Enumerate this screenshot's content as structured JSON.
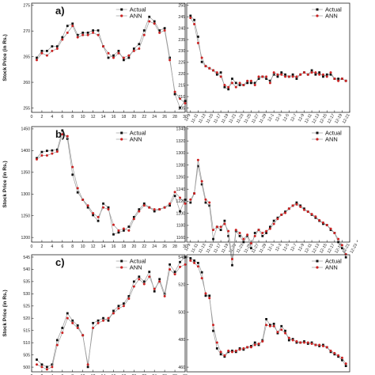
{
  "figure": {
    "panel_labels": [
      "a)",
      "b)",
      "c)"
    ],
    "ylabel": "Stock Price (in Rs.)",
    "series_names": [
      "Actual",
      "ANN"
    ],
    "colors": {
      "actual": "#111111",
      "ann": "#cc2222",
      "line": "#9a9a9a"
    }
  },
  "chart_data": [
    {
      "type": "line",
      "panel": "a)",
      "position": "left",
      "x": [
        1,
        2,
        3,
        4,
        5,
        6,
        7,
        8,
        9,
        10,
        11,
        12,
        13,
        14,
        15,
        16,
        17,
        18,
        19,
        20,
        21,
        22,
        23,
        24,
        25,
        26,
        27,
        28,
        29,
        30
      ],
      "x_ticks": [
        "0",
        "2",
        "4",
        "6",
        "8",
        "10",
        "12",
        "14",
        "16",
        "18",
        "20",
        "22",
        "24",
        "26",
        "28",
        "30"
      ],
      "xlim": [
        0,
        30
      ],
      "ylim": [
        254,
        278
      ],
      "y_ticks": [
        "255",
        "260",
        "265",
        "270",
        "275"
      ],
      "series": [
        {
          "name": "Actual",
          "values": [
            266.0,
            267.5,
            267.5,
            268.5,
            268.5,
            270.5,
            273.0,
            273.5,
            271.0,
            271.5,
            271.5,
            272.0,
            272.0,
            268.5,
            266.0,
            266.5,
            267.5,
            265.5,
            266.0,
            268.0,
            269.0,
            272.0,
            275.0,
            274.0,
            272.0,
            272.5,
            266.0,
            258.0,
            255.0,
            256.5
          ]
        },
        {
          "name": "ANN",
          "values": [
            265.5,
            267.0,
            266.5,
            267.5,
            268.0,
            270.0,
            271.5,
            273.0,
            270.5,
            271.0,
            271.0,
            271.5,
            271.0,
            268.5,
            267.0,
            266.0,
            267.0,
            266.0,
            266.5,
            267.5,
            268.0,
            271.0,
            274.0,
            273.5,
            271.5,
            272.0,
            265.5,
            258.5,
            257.0,
            256.0
          ]
        }
      ]
    },
    {
      "type": "line",
      "position": "right",
      "x": [
        1,
        2,
        3,
        4,
        5,
        6,
        7,
        8,
        9,
        10,
        11,
        12,
        13,
        14,
        15,
        16,
        17,
        18,
        19,
        20,
        21,
        22,
        23,
        24,
        25,
        26,
        27,
        28,
        29,
        30,
        31,
        32,
        33,
        34,
        35,
        36,
        37,
        38,
        39,
        40,
        41,
        42
      ],
      "x_ticks": [
        "11-9",
        "11-11",
        "11-13",
        "11-15",
        "11-17",
        "11-19",
        "11-21",
        "11-23",
        "11-25",
        "11-27",
        "11-29",
        "12-1",
        "12-3",
        "12-5",
        "12-7",
        "12-9",
        "12-11",
        "12-13",
        "12-15",
        "12-17",
        "12-19",
        "12-21"
      ],
      "xlim": [
        0,
        43
      ],
      "ylim": [
        200,
        252
      ],
      "y_ticks": [
        "205",
        "210",
        "215",
        "220",
        "225",
        "230",
        "235",
        "240",
        "245",
        "250"
      ],
      "series": [
        {
          "name": "Actual",
          "values": [
            246,
            244,
            236,
            224,
            222,
            221,
            220,
            218,
            219,
            212,
            211,
            216,
            214,
            213,
            213,
            214,
            214,
            214,
            216,
            217,
            216,
            215,
            218,
            217,
            219,
            218,
            217,
            218,
            216,
            218,
            219,
            218,
            220,
            218,
            219,
            217,
            218,
            218,
            216,
            216,
            216,
            215
          ]
        },
        {
          "name": "ANN",
          "values": [
            245,
            242,
            233,
            226,
            222,
            221,
            220,
            219,
            217,
            213,
            212,
            214,
            212,
            214,
            213,
            215,
            215,
            213,
            217,
            217,
            217,
            214,
            219,
            218,
            218,
            217,
            217,
            217,
            217,
            218,
            219,
            218,
            219,
            219,
            218,
            218,
            217,
            219,
            216,
            215,
            216,
            215
          ]
        }
      ]
    },
    {
      "type": "line",
      "panel": "b)",
      "position": "left",
      "x": [
        1,
        2,
        3,
        4,
        5,
        6,
        7,
        8,
        9,
        10,
        11,
        12,
        13,
        14,
        15,
        16,
        17,
        18,
        19,
        20,
        21,
        22,
        23,
        24,
        25,
        26,
        27,
        28,
        29,
        30
      ],
      "x_ticks": [
        "0",
        "2",
        "4",
        "6",
        "8",
        "10",
        "12",
        "14",
        "16",
        "18",
        "20",
        "22",
        "24",
        "26",
        "28",
        "30"
      ],
      "xlim": [
        0,
        30
      ],
      "ylim": [
        1150,
        1450
      ],
      "y_ticks": [
        "1200",
        "1250",
        "1300",
        "1350",
        "1400",
        "1450"
      ],
      "series": [
        {
          "name": "Actual",
          "values": [
            1368,
            1384,
            1387,
            1388,
            1390,
            1440,
            1418,
            1325,
            1279,
            1260,
            1240,
            1220,
            1205,
            1250,
            1240,
            1170,
            1175,
            1180,
            1190,
            1215,
            1235,
            1250,
            1240,
            1230,
            1235,
            1240,
            1245,
            1270,
            1230,
            1260
          ]
        },
        {
          "name": "ANN",
          "values": [
            1365,
            1375,
            1375,
            1380,
            1385,
            1430,
            1425,
            1345,
            1290,
            1260,
            1245,
            1225,
            1215,
            1240,
            1235,
            1195,
            1180,
            1185,
            1180,
            1210,
            1230,
            1245,
            1240,
            1235,
            1235,
            1240,
            1250,
            1280,
            1265,
            1250
          ]
        }
      ]
    },
    {
      "type": "line",
      "position": "right",
      "x": [
        1,
        2,
        3,
        4,
        5,
        6,
        7,
        8,
        9,
        10,
        11,
        12,
        13,
        14,
        15,
        16,
        17,
        18,
        19,
        20,
        21,
        22,
        23,
        24,
        25,
        26,
        27,
        28,
        29,
        30,
        31,
        32,
        33,
        34,
        35,
        36,
        37,
        38,
        39,
        40,
        41,
        42
      ],
      "x_ticks": [
        "11-9",
        "11-11",
        "11-13",
        "11-15",
        "11-17",
        "11-19",
        "11-21",
        "11-23",
        "11-25",
        "11-27",
        "11-29",
        "12-1",
        "12-3",
        "12-5",
        "12-7",
        "12-9",
        "12-11",
        "12-13",
        "12-15",
        "12-17",
        "12-19",
        "12-21",
        "12-23"
      ],
      "xlim": [
        0,
        43
      ],
      "ylim": [
        1150,
        1340
      ],
      "y_ticks": [
        "1160",
        "1180",
        "1200",
        "1220",
        "1240",
        "1260",
        "1280",
        "1300",
        "1320",
        "1340"
      ],
      "series": [
        {
          "name": "Actual",
          "values": [
            1215,
            1230,
            1275,
            1245,
            1215,
            1210,
            1155,
            1175,
            1170,
            1185,
            1160,
            1112,
            1168,
            1160,
            1150,
            1160,
            1140,
            1165,
            1170,
            1160,
            1165,
            1175,
            1185,
            1190,
            1195,
            1200,
            1205,
            1210,
            1215,
            1210,
            1205,
            1200,
            1195,
            1190,
            1185,
            1180,
            1178,
            1170,
            1165,
            1150,
            1140,
            1125
          ]
        },
        {
          "name": "ANN",
          "values": [
            1220,
            1230,
            1285,
            1250,
            1220,
            1215,
            1170,
            1175,
            1175,
            1180,
            1168,
            1122,
            1170,
            1165,
            1155,
            1162,
            1148,
            1160,
            1170,
            1165,
            1168,
            1172,
            1180,
            1188,
            1195,
            1198,
            1205,
            1210,
            1212,
            1208,
            1203,
            1200,
            1196,
            1192,
            1186,
            1182,
            1178,
            1172,
            1165,
            1155,
            1145,
            1130
          ]
        }
      ]
    },
    {
      "type": "line",
      "panel": "c)",
      "position": "left",
      "x": [
        1,
        2,
        3,
        4,
        5,
        6,
        7,
        8,
        9,
        10,
        11,
        12,
        13,
        14,
        15,
        16,
        17,
        18,
        19,
        20,
        21,
        22,
        23,
        24,
        25,
        26,
        27,
        28,
        29,
        30
      ],
      "x_ticks": [
        "0",
        "2",
        "4",
        "6",
        "8",
        "10",
        "12",
        "14",
        "16",
        "18",
        "20",
        "22",
        "24",
        "26",
        "28",
        "30"
      ],
      "xlim": [
        0,
        30
      ],
      "ylim": [
        497,
        545
      ],
      "y_ticks": [
        "500",
        "505",
        "510",
        "515",
        "520",
        "525",
        "530",
        "535",
        "540",
        "545"
      ],
      "series": [
        {
          "name": "Actual",
          "values": [
            502,
            500,
            499,
            500,
            510,
            515,
            521,
            518,
            516,
            512,
            499,
            517,
            518,
            519,
            518,
            522,
            524,
            525,
            528,
            534,
            536,
            534,
            538,
            530,
            535,
            529,
            541,
            538,
            542,
            544
          ]
        },
        {
          "name": "ANN",
          "values": [
            500,
            499,
            498,
            499,
            508,
            513,
            519,
            517,
            515,
            512,
            500,
            515,
            517,
            518,
            519,
            521,
            523,
            524,
            527,
            532,
            535,
            533,
            536,
            531,
            534,
            528,
            539,
            537,
            540,
            541
          ]
        }
      ]
    },
    {
      "type": "line",
      "position": "right",
      "x": [
        1,
        2,
        3,
        4,
        5,
        6,
        7,
        8,
        9,
        10,
        11,
        12,
        13,
        14,
        15,
        16,
        17,
        18,
        19,
        20,
        21,
        22,
        23,
        24,
        25,
        26,
        27,
        28,
        29,
        30,
        31,
        32,
        33,
        34,
        35,
        36,
        37,
        38,
        39,
        40,
        41,
        42
      ],
      "x_ticks": [],
      "xlim": [
        0,
        43
      ],
      "ylim": [
        445,
        545
      ],
      "y_ticks": [
        "460",
        "480",
        "500",
        "520",
        "540"
      ],
      "series": [
        {
          "name": "Actual",
          "values": [
            542,
            540,
            538,
            530,
            510,
            510,
            480,
            465,
            460,
            458,
            462,
            463,
            462,
            465,
            464,
            466,
            467,
            470,
            468,
            472,
            490,
            485,
            486,
            478,
            484,
            480,
            472,
            473,
            470,
            470,
            471,
            469,
            470,
            468,
            467,
            468,
            466,
            462,
            460,
            458,
            455,
            450
          ]
        },
        {
          "name": "ANN",
          "values": [
            540,
            538,
            535,
            525,
            512,
            508,
            485,
            470,
            462,
            459,
            463,
            462,
            463,
            464,
            465,
            466,
            466,
            468,
            469,
            471,
            485,
            484,
            484,
            479,
            481,
            478,
            474,
            472,
            471,
            470,
            470,
            470,
            469,
            468,
            468,
            467,
            466,
            463,
            461,
            459,
            457,
            452
          ]
        }
      ]
    }
  ]
}
